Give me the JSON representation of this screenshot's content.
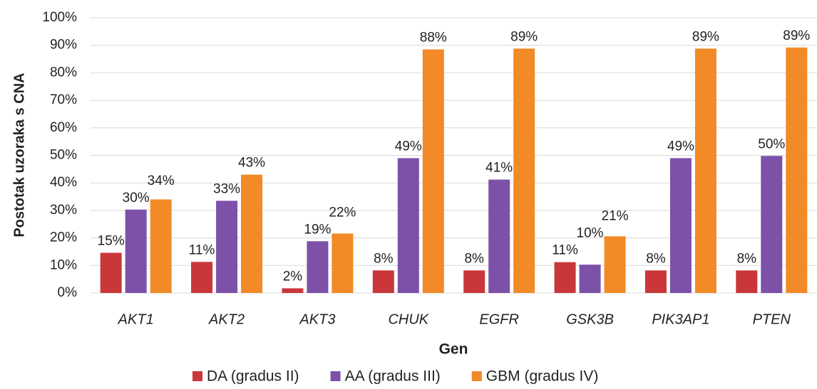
{
  "chart_data": {
    "type": "bar",
    "y_label": "Postotak uzoraka s CNA",
    "x_label": "Gen",
    "categories": [
      "AKT1",
      "AKT2",
      "AKT3",
      "CHUK",
      "EGFR",
      "GSK3B",
      "PIK3AP1",
      "PTEN"
    ],
    "series": [
      {
        "name": "DA (gradus II)",
        "color": "#c9373a",
        "values": [
          14.6,
          11.3,
          1.7,
          8.2,
          8.2,
          11.2,
          8.2,
          8.2
        ],
        "value_labels": [
          "15%",
          "11%",
          "2%",
          "8%",
          "8%",
          "11%",
          "8%",
          "8%"
        ]
      },
      {
        "name": "AA (gradus III)",
        "color": "#7d51a8",
        "values": [
          30.3,
          33.5,
          18.8,
          49,
          41.2,
          10.3,
          49,
          49.8
        ],
        "value_labels": [
          "30%",
          "33%",
          "19%",
          "49%",
          "41%",
          "10%",
          "49%",
          "50%"
        ]
      },
      {
        "name": "GBM (gradus IV)",
        "color": "#f28a27",
        "values": [
          34,
          43,
          21.6,
          88.5,
          88.8,
          20.6,
          88.8,
          89.2
        ],
        "value_labels": [
          "34%",
          "43%",
          "22%",
          "88%",
          "89%",
          "21%",
          "89%",
          "89%"
        ]
      }
    ],
    "ylim": [
      0,
      100
    ],
    "yticks": [
      {
        "value": 0,
        "label": "0%"
      },
      {
        "value": 10,
        "label": "10%"
      },
      {
        "value": 20,
        "label": "20%"
      },
      {
        "value": 30,
        "label": "30%"
      },
      {
        "value": 40,
        "label": "40%"
      },
      {
        "value": 50,
        "label": "50%"
      },
      {
        "value": 60,
        "label": "60%"
      },
      {
        "value": 70,
        "label": "70%"
      },
      {
        "value": 80,
        "label": "80%"
      },
      {
        "value": 90,
        "label": "90%"
      },
      {
        "value": 100,
        "label": "100%"
      }
    ],
    "grid": true,
    "legend": "bottom"
  }
}
